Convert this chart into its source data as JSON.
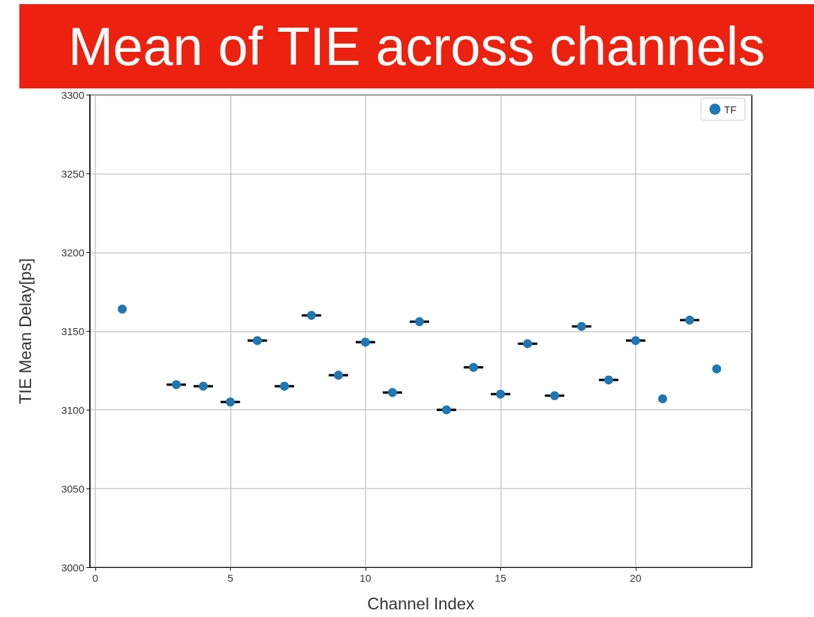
{
  "chart_data": {
    "type": "scatter",
    "title": "Mean of TIE across channels",
    "xlabel": "Channel Index",
    "ylabel": "TIE Mean Delay[ps]",
    "xlim": [
      -0.2,
      24.3
    ],
    "xticks": [
      0,
      5,
      10,
      15,
      20
    ],
    "ylim": [
      3000,
      3300
    ],
    "yticks": [
      3000,
      3050,
      3100,
      3150,
      3200,
      3250,
      3300
    ],
    "series": [
      {
        "name": "TF",
        "color": "#1f77b4",
        "x": [
          1,
          3,
          4,
          5,
          6,
          7,
          8,
          9,
          10,
          11,
          12,
          13,
          14,
          15,
          16,
          17,
          18,
          19,
          20,
          21,
          22,
          23
        ],
        "values": [
          3164,
          3116,
          3115,
          3105,
          3144,
          3115,
          3160,
          3122,
          3143,
          3111,
          3156,
          3100,
          3127,
          3110,
          3142,
          3109,
          3153,
          3119,
          3144,
          3107,
          3157,
          3126
        ],
        "errors": [
          null,
          0.3,
          0.3,
          0.3,
          0.3,
          0.3,
          0.3,
          0.3,
          0.3,
          0.3,
          0.3,
          0.3,
          0.3,
          0.3,
          0.3,
          0.3,
          0.3,
          0.3,
          0.3,
          null,
          0.3,
          null
        ]
      }
    ],
    "grid": true,
    "legend": "top right",
    "marker": "circle"
  }
}
